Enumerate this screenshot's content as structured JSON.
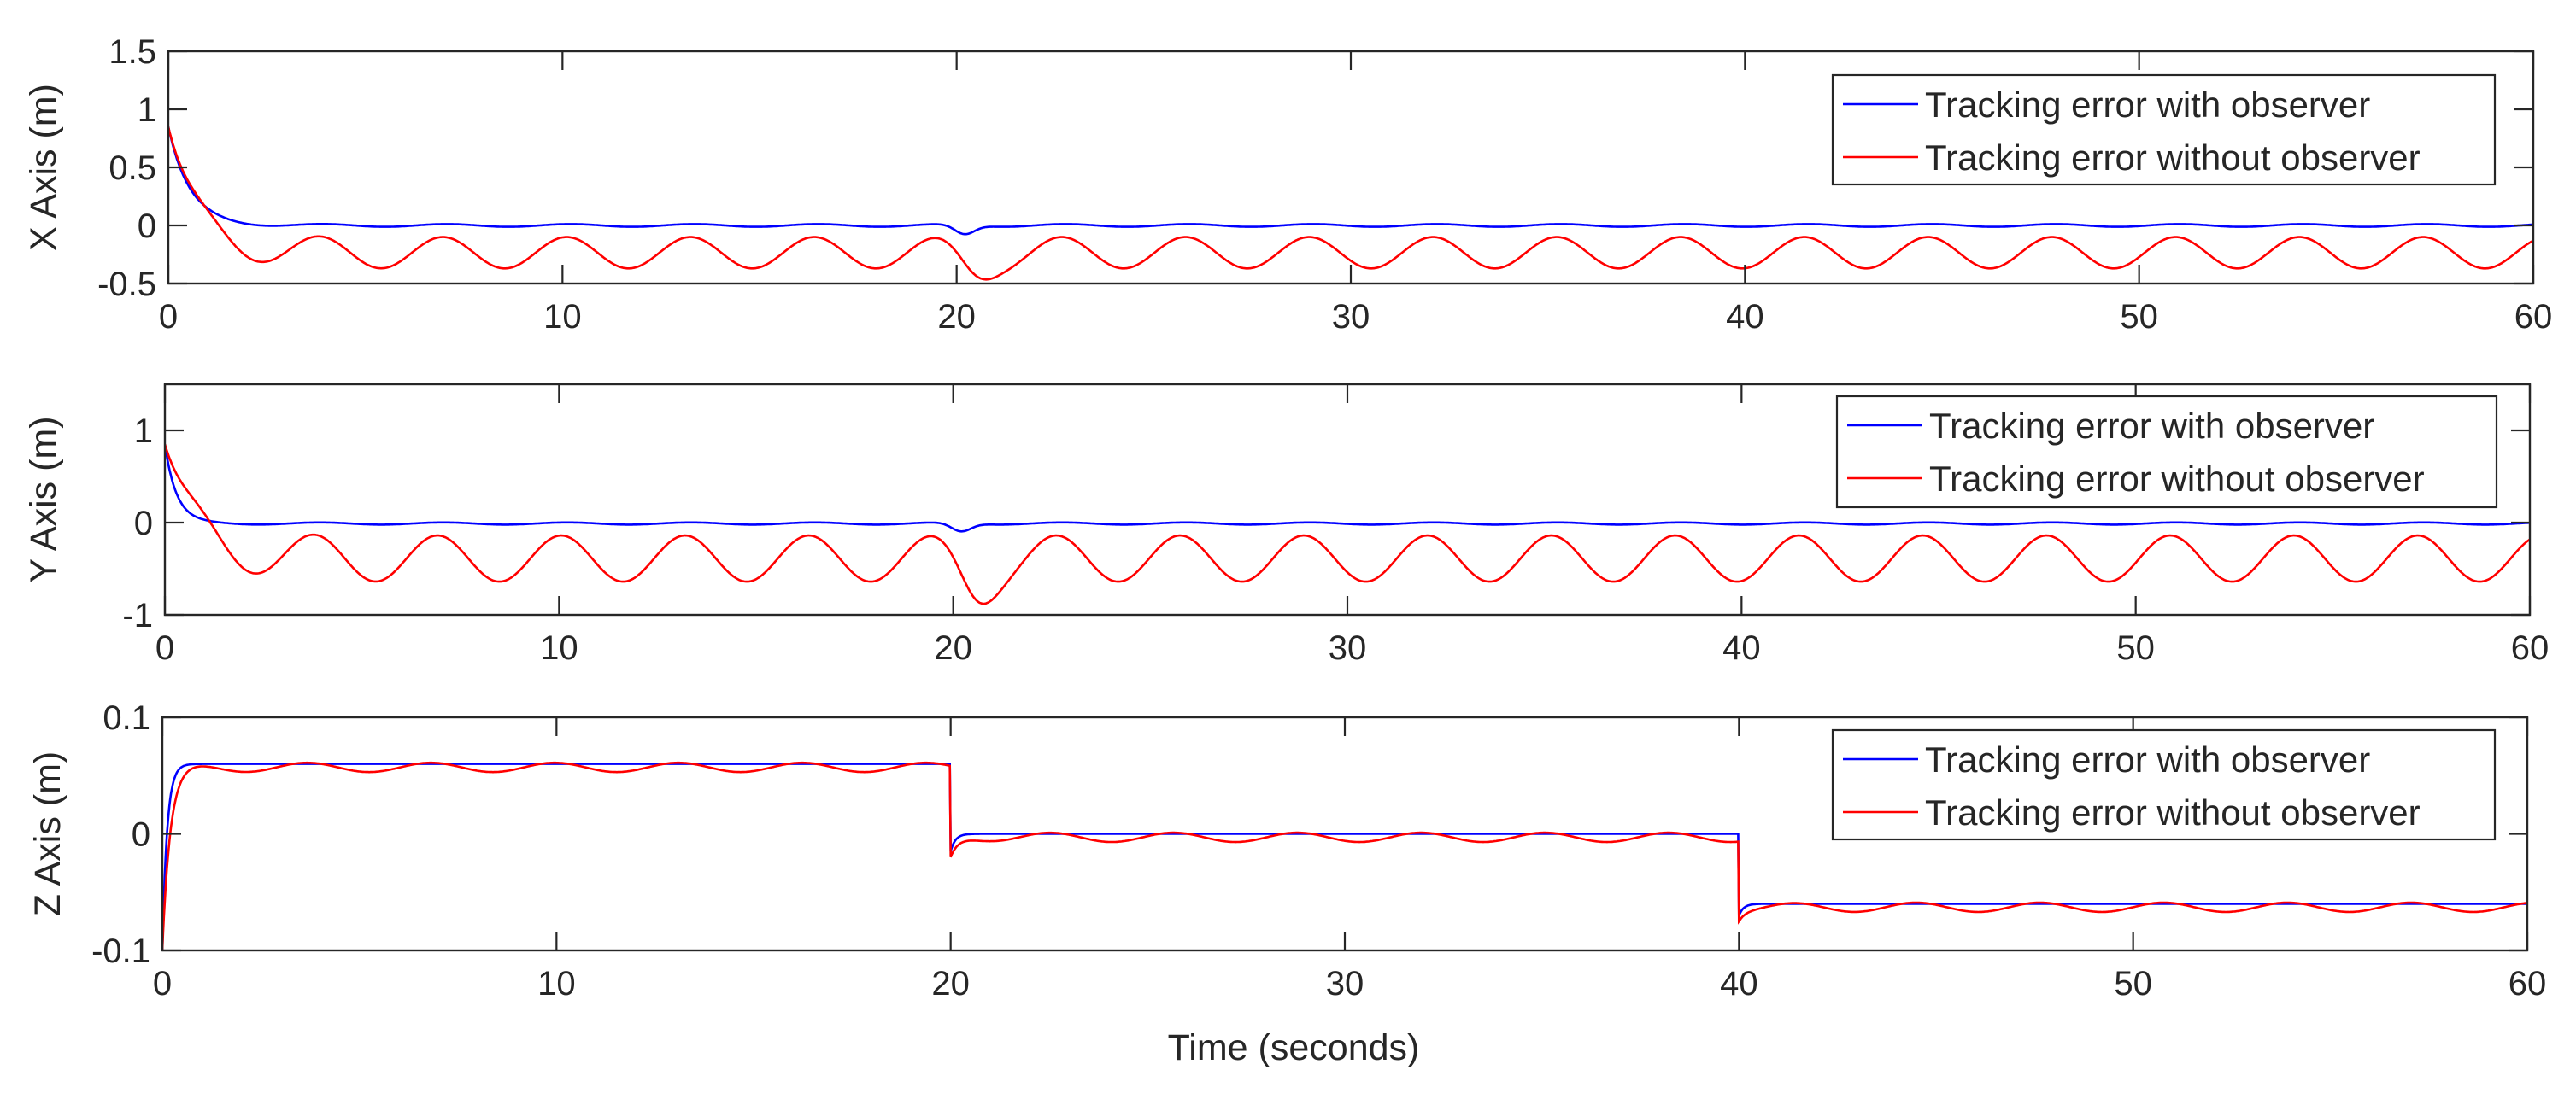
{
  "colors": {
    "with_observer": "#0000ff",
    "without_observer": "#ff0000",
    "axis": "#262626",
    "background": "#ffffff"
  },
  "chart_data": [
    {
      "type": "line",
      "panel": "x",
      "title": "",
      "xlabel": "",
      "ylabel": "X Axis (m)",
      "xlim": [
        0,
        60
      ],
      "ylim": [
        -0.5,
        1.5
      ],
      "xticks": [
        0,
        10,
        20,
        30,
        40,
        50,
        60
      ],
      "xtick_labels": [
        "0",
        "10",
        "20",
        "30",
        "40",
        "50",
        "60"
      ],
      "yticks": [
        -0.5,
        0,
        0.5,
        1,
        1.5
      ],
      "ytick_labels": [
        "-0.5",
        "0",
        "0.5",
        "1",
        "1.5"
      ],
      "legend_position": "top-right",
      "series": [
        {
          "name": "Tracking error with observer",
          "color": "#0000ff",
          "initial": 0.85,
          "tau": 0.55,
          "steady": 0.0,
          "osc_amp": 0.012,
          "osc_period": 3.14,
          "disturbances": [
            {
              "t": 20.2,
              "dip": -0.08,
              "width": 0.35
            }
          ]
        },
        {
          "name": "Tracking error without observer",
          "color": "#ff0000",
          "initial": 0.85,
          "tau": 0.75,
          "steady": -0.235,
          "osc_amp": 0.135,
          "osc_period": 3.14,
          "osc_phase": 0.2,
          "disturbances": [
            {
              "t": 20.5,
              "dip": -0.15,
              "width": 0.6
            }
          ]
        }
      ]
    },
    {
      "type": "line",
      "panel": "y",
      "title": "",
      "xlabel": "",
      "ylabel": "Y Axis (m)",
      "xlim": [
        0,
        60
      ],
      "ylim": [
        -1,
        1.5
      ],
      "xticks": [
        0,
        10,
        20,
        30,
        40,
        50,
        60
      ],
      "xtick_labels": [
        "0",
        "10",
        "20",
        "30",
        "40",
        "50",
        "60"
      ],
      "yticks": [
        -1,
        0,
        1
      ],
      "ytick_labels": [
        "-1",
        "0",
        "1"
      ],
      "legend_position": "top-right",
      "series": [
        {
          "name": "Tracking error with observer",
          "color": "#0000ff",
          "initial": 0.85,
          "tau": 0.3,
          "steady": -0.01,
          "osc_amp": 0.012,
          "osc_period": 3.14,
          "disturbances": [
            {
              "t": 20.2,
              "dip": -0.09,
              "width": 0.35
            }
          ]
        },
        {
          "name": "Tracking error without observer",
          "color": "#ff0000",
          "initial": 0.85,
          "tau": 0.8,
          "steady": -0.39,
          "osc_amp": 0.25,
          "osc_period": 3.14,
          "osc_phase": 0.3,
          "disturbances": [
            {
              "t": 20.6,
              "dip": -0.3,
              "width": 0.6
            }
          ]
        }
      ]
    },
    {
      "type": "line",
      "panel": "z",
      "title": "",
      "xlabel": "Time (seconds)",
      "ylabel": "Z Axis (m)",
      "xlim": [
        0,
        60
      ],
      "ylim": [
        -0.1,
        0.1
      ],
      "xticks": [
        0,
        10,
        20,
        30,
        40,
        50,
        60
      ],
      "xtick_labels": [
        "0",
        "10",
        "20",
        "30",
        "40",
        "50",
        "60"
      ],
      "yticks": [
        -0.1,
        0,
        0.1
      ],
      "ytick_labels": [
        "-0.1",
        "0",
        "0.1"
      ],
      "legend_position": "top-right",
      "series": [
        {
          "name": "Tracking error with observer",
          "color": "#0000ff",
          "steps": [
            {
              "t0": 0,
              "from": -0.1,
              "to": 0.06
            },
            {
              "t0": 20,
              "from": -0.015,
              "to": 0.0
            },
            {
              "t0": 40,
              "from": -0.07,
              "to": -0.06
            }
          ],
          "tau": 0.12,
          "osc_amp": 0.0,
          "osc_period": 3.14
        },
        {
          "name": "Tracking error without observer",
          "color": "#ff0000",
          "steps": [
            {
              "t0": 0,
              "from": -0.1,
              "to": 0.057
            },
            {
              "t0": 20,
              "from": -0.02,
              "to": -0.003
            },
            {
              "t0": 40,
              "from": -0.075,
              "to": -0.063
            }
          ],
          "tau": 0.2,
          "osc_amp": 0.004,
          "osc_period": 3.14,
          "osc_phase": 0.5
        }
      ]
    }
  ]
}
